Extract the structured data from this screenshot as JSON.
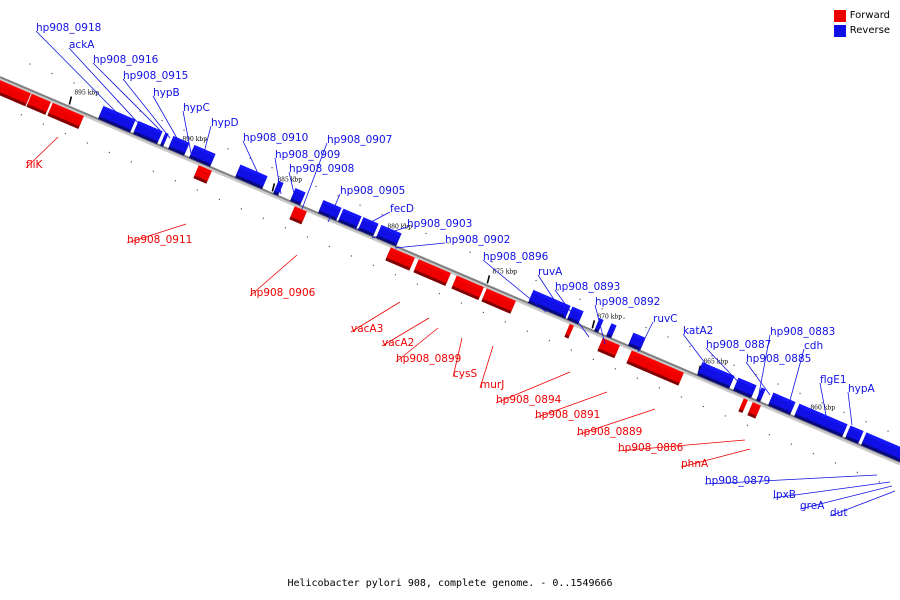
{
  "colors": {
    "forward": "#ee0000",
    "reverse": "#1010e6",
    "axis": "#808080"
  },
  "legend": {
    "forward_label": "Forward",
    "reverse_label": "Reverse"
  },
  "caption": "Helicobacter pylori 908, complete genome. - 0..1549666",
  "kbp_labels": [
    "895 kbp",
    "890 kbp",
    "885 kbp",
    "880 kbp",
    "875 kbp",
    "870 kbp",
    "865 kbp",
    "860 kbp"
  ],
  "forward_genes": [
    "fliK",
    "hp908_0911",
    "hp908_0906",
    "vacA3",
    "vacA2",
    "hp908_0899",
    "cysS",
    "murJ",
    "hp908_0894",
    "hp908_0891",
    "hp908_0889",
    "hp908_0886",
    "phnA"
  ],
  "reverse_genes": [
    "hp908_0918",
    "ackA",
    "hp908_0916",
    "hp908_0915",
    "hypB",
    "hypC",
    "hypD",
    "hp908_0910",
    "hp908_0909",
    "hp908_0908",
    "hp908_0907",
    "hp908_0905",
    "fecD",
    "hp908_0903",
    "hp908_0902",
    "hp908_0896",
    "ruvA",
    "hp908_0893",
    "hp908_0892",
    "ruvC",
    "katA2",
    "hp908_0887",
    "hp908_0883",
    "hp908_0885",
    "cdh",
    "flgE1",
    "hypA",
    "hp908_0879",
    "lpxB",
    "greA",
    "dut"
  ]
}
